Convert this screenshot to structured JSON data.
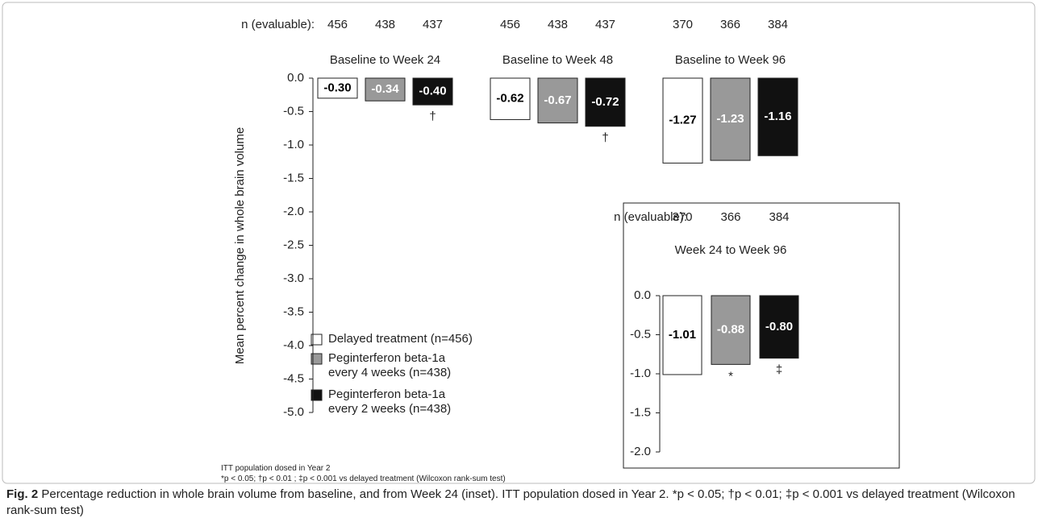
{
  "chart_data": [
    {
      "type": "bar",
      "n_label": "n (evaluable):",
      "categories": [
        "Baseline to Week 24",
        "Baseline to Week 48",
        "Baseline to Week 96"
      ],
      "ylabel": "Mean percent change in whole brain volume",
      "ylim": [
        -5,
        0
      ],
      "yticks": [
        {
          "value": 0,
          "label": "0.0"
        },
        -0.5,
        {
          "value": -1,
          "label": "-1.0"
        },
        -1.5,
        {
          "value": -2,
          "label": "-2.0"
        },
        -2.5,
        {
          "value": -3,
          "label": "-3.0"
        },
        -3.5,
        {
          "value": -4,
          "label": "-4.0"
        },
        -4.5,
        {
          "value": -5,
          "label": "-5.0"
        }
      ],
      "series": [
        {
          "name": "Delayed treatment (n=456)",
          "color": "#ffffff",
          "label_color": "#000000",
          "values": [
            -0.3,
            -0.62,
            -1.27
          ],
          "value_labels": [
            "-0.30",
            "-0.62",
            "-1.27"
          ],
          "n": [
            456,
            456,
            370
          ],
          "annotations": [
            null,
            null,
            null
          ]
        },
        {
          "name": "Peginterferon beta-1a every 4 weeks (n=438)",
          "color": "#999999",
          "label_color": "#ffffff",
          "values": [
            -0.34,
            -0.67,
            -1.23
          ],
          "value_labels": [
            "-0.34",
            "-0.67",
            "-1.23"
          ],
          "n": [
            438,
            438,
            366
          ],
          "annotations": [
            null,
            null,
            null
          ]
        },
        {
          "name": "Peginterferon beta-1a every 2 weeks (n=438)",
          "color": "#111111",
          "label_color": "#ffffff",
          "values": [
            -0.4,
            -0.72,
            -1.16
          ],
          "value_labels": [
            "-0.40",
            "-0.72",
            "-1.16"
          ],
          "n": [
            437,
            437,
            384
          ],
          "annotations": [
            "†",
            "†",
            null
          ]
        }
      ]
    },
    {
      "type": "bar",
      "n_label": "n (evaluable):",
      "categories": [
        "Week 24 to Week 96"
      ],
      "ylim": [
        -2,
        0
      ],
      "yticks": [
        {
          "value": 0,
          "label": "0.0"
        },
        -0.5,
        {
          "value": -1,
          "label": "-1.0"
        },
        -1.5,
        {
          "value": -2,
          "label": "-2.0"
        }
      ],
      "series": [
        {
          "color": "#ffffff",
          "label_color": "#000000",
          "values": [
            -1.01
          ],
          "value_labels": [
            "-1.01"
          ],
          "n": [
            370
          ],
          "annotations": [
            null
          ]
        },
        {
          "color": "#999999",
          "label_color": "#ffffff",
          "values": [
            -0.88
          ],
          "value_labels": [
            "-0.88"
          ],
          "n": [
            366
          ],
          "annotations": [
            "*"
          ]
        },
        {
          "color": "#111111",
          "label_color": "#ffffff",
          "values": [
            -0.8
          ],
          "value_labels": [
            "-0.80"
          ],
          "n": [
            384
          ],
          "annotations": [
            "‡"
          ]
        }
      ]
    }
  ],
  "notes": [
    "ITT population dosed in Year 2",
    "*p < 0.05; †p < 0.01 ; ‡p < 0.001 vs delayed treatment (Wilcoxon rank-sum test)"
  ],
  "caption": {
    "label": "Fig. 2",
    "text": "Percentage reduction in whole brain volume from baseline, and from Week 24 (inset). ITT population dosed in Year 2. *p < 0.05; †p < 0.01; ‡p < 0.001 vs delayed treatment (Wilcoxon rank-sum test)"
  }
}
